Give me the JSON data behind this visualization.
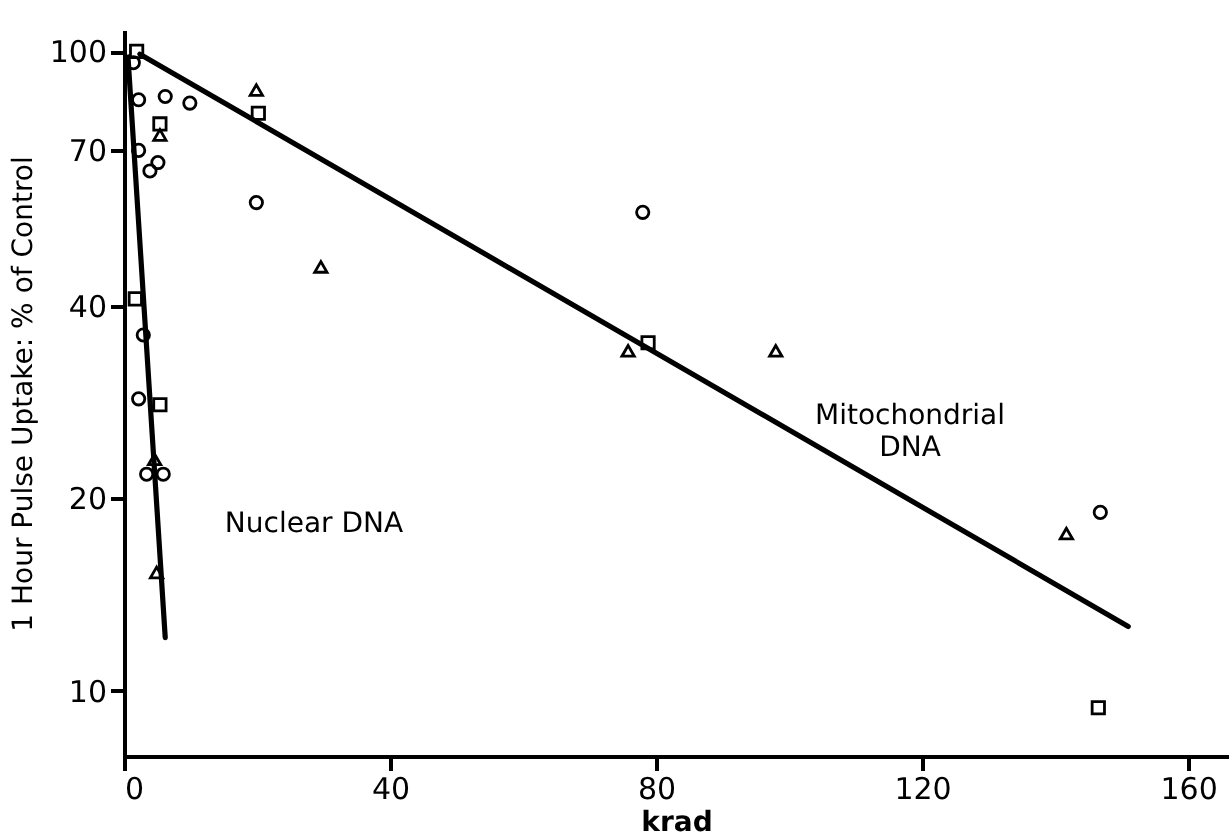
{
  "chart_data": {
    "type": "scatter",
    "xlabel": "krad",
    "ylabel": "1 Hour Pulse Uptake: % of Control",
    "xlim": [
      0,
      166
    ],
    "xticks": [
      0,
      40,
      80,
      120,
      160
    ],
    "ylim": [
      7.9,
      108
    ],
    "yticks": [
      10,
      20,
      40,
      70,
      100
    ],
    "log": "y",
    "grid": false,
    "annotations": [
      "Nuclear DNA",
      "Mitochondrial\nDNA"
    ],
    "series": [
      {
        "marker": "circle",
        "color": "#000000",
        "x": [
          2.2,
          6.2,
          9.9,
          1.4,
          3.9,
          5.1,
          19.9,
          78,
          146.8
        ],
        "values": [
          84,
          85,
          83,
          96,
          65,
          67,
          58,
          56,
          19
        ]
      },
      {
        "marker": "square",
        "color": "#000000",
        "x": [
          1.9,
          5.4,
          20.2,
          78.8,
          146.5
        ],
        "values": [
          100,
          77,
          80,
          35,
          9.4
        ]
      },
      {
        "marker": "triangle",
        "color": "#000000",
        "x": [
          5.4,
          19.9,
          29.6,
          75.8,
          98,
          141.7
        ],
        "values": [
          74,
          87,
          46,
          34,
          34,
          17.6
        ]
      },
      {
        "marker": "circle",
        "color": "#000000",
        "x": [
          2.2,
          2.9,
          2.2,
          3.4,
          5.9
        ],
        "values": [
          70,
          36,
          28.6,
          21.8,
          21.8
        ]
      },
      {
        "marker": "square",
        "color": "#000000",
        "x": [
          1.7,
          5.4
        ],
        "values": [
          41,
          28
        ]
      },
      {
        "marker": "triangle",
        "color": "#000000",
        "x": [
          4.6,
          4.9
        ],
        "values": [
          23,
          15.3
        ]
      },
      {
        "type": "line",
        "line_style": "solid",
        "color": "#000000",
        "x": [
          0.6,
          6.2
        ],
        "values": [
          98,
          12.1
        ]
      },
      {
        "type": "line",
        "line_style": "solid",
        "color": "#000000",
        "x": [
          2.4,
          151
        ],
        "values": [
          99,
          12.6
        ]
      }
    ]
  }
}
